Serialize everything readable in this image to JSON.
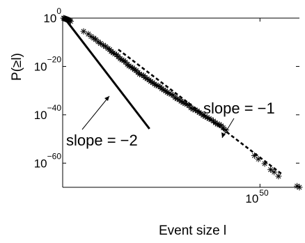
{
  "chart_data": {
    "type": "scatter",
    "xlabel": "Event size l",
    "ylabel": "P(≥l)",
    "x_scale": "log10",
    "y_scale": "log10",
    "xlim_log10": [
      0,
      60
    ],
    "ylim_log10": [
      -70,
      0
    ],
    "x_ticks": [
      {
        "log10": 50,
        "base": "10",
        "exp": "50"
      }
    ],
    "y_ticks": [
      {
        "log10": 0,
        "base": "10",
        "exp": "0"
      },
      {
        "log10": -20,
        "base": "10",
        "exp": "−20"
      },
      {
        "log10": -40,
        "base": "10",
        "exp": "−40"
      },
      {
        "log10": -60,
        "base": "10",
        "exp": "−60"
      }
    ],
    "series": [
      {
        "marker": "asterisk",
        "log10_x": [
          0.2,
          0.4,
          0.6,
          0.8,
          1.0,
          1.2,
          1.4,
          1.6,
          1.8,
          2.0,
          5.3,
          6.5,
          7.2,
          7.9,
          8.4,
          9.0,
          9.6,
          10.3,
          10.9,
          11.5,
          11.9,
          12.3,
          12.8,
          13.2,
          13.7,
          14.1,
          14.6,
          15.0,
          15.5,
          15.9,
          16.4,
          16.8,
          17.3,
          17.7,
          18.2,
          18.6,
          19.1,
          19.5,
          20.0,
          20.5,
          20.9,
          21.4,
          21.9,
          22.3,
          22.8,
          23.3,
          23.7,
          24.2,
          24.7,
          25.1,
          25.6,
          26.1,
          26.5,
          27.0,
          27.5,
          28.0,
          28.5,
          29.0,
          29.5,
          30.0,
          30.5,
          31.0,
          31.5,
          32.0,
          32.5,
          33.0,
          33.6,
          34.1,
          34.6,
          35.1,
          35.6,
          36.1,
          36.6,
          37.1,
          37.6,
          38.2,
          38.7,
          39.2,
          39.7,
          40.2,
          40.7,
          41.4,
          48.6,
          49.6,
          51.2,
          52.7,
          53.6,
          54.7,
          59.4,
          60.0
        ],
        "log10_y": [
          0,
          -0.1,
          -0.2,
          -0.4,
          -0.5,
          -0.6,
          -0.7,
          -0.9,
          -1.1,
          -1.3,
          -5.5,
          -6.6,
          -7.6,
          -8.3,
          -8.9,
          -9.8,
          -10.5,
          -11.2,
          -11.8,
          -12.6,
          -13.0,
          -13.8,
          -14.4,
          -14.8,
          -15.2,
          -16.0,
          -16.8,
          -17.3,
          -17.6,
          -18.2,
          -19.1,
          -19.8,
          -20.2,
          -20.6,
          -21.3,
          -21.7,
          -22.5,
          -23.2,
          -23.5,
          -23.8,
          -24.6,
          -25.1,
          -25.6,
          -26.2,
          -26.7,
          -27.3,
          -27.8,
          -28.0,
          -28.5,
          -29.2,
          -29.7,
          -30.2,
          -30.7,
          -31.2,
          -31.5,
          -32.0,
          -32.9,
          -33.4,
          -33.7,
          -34.4,
          -34.9,
          -35.4,
          -35.6,
          -36.2,
          -37.1,
          -37.7,
          -38.0,
          -38.4,
          -39.1,
          -39.5,
          -40.2,
          -40.7,
          -41.1,
          -41.6,
          -42.0,
          -42.6,
          -43.3,
          -43.9,
          -44.0,
          -44.6,
          -45.4,
          -46.3,
          -56.9,
          -58.3,
          -60.2,
          -62.7,
          -63.7,
          -65.4,
          -69.5,
          -70.0
        ]
      }
    ],
    "reference_lines": [
      {
        "label": "slope = −1",
        "style": "dashed",
        "log10_x": [
          14.1,
          55.6
        ],
        "log10_y": [
          -13.0,
          -64.6
        ]
      },
      {
        "label": "slope = −2",
        "style": "solid",
        "log10_x": [
          0.6,
          22.0
        ],
        "log10_y": [
          -0.3,
          -45.8
        ]
      }
    ]
  }
}
